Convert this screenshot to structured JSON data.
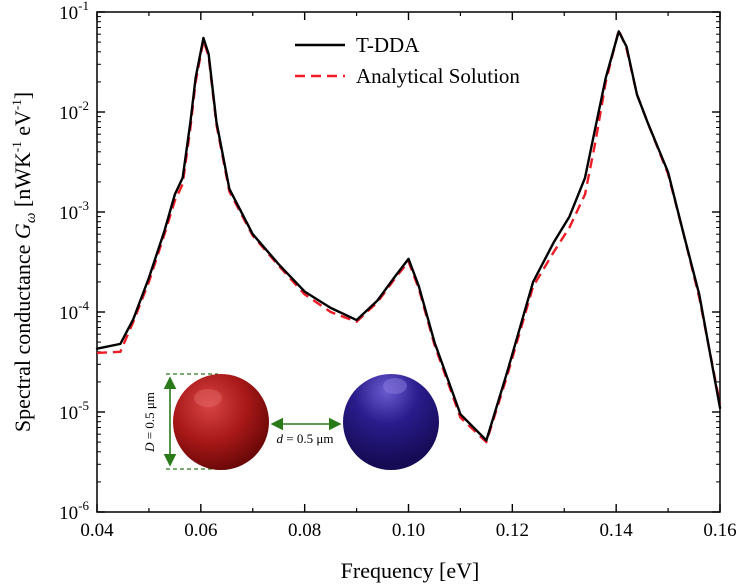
{
  "chart_data": {
    "type": "line",
    "xlabel": "Frequency [eV]",
    "ylabel": {
      "prefix": "Spectral conductance ",
      "symbol": "G",
      "subscript": "ω",
      "units_open": "  [nWK",
      "units_sup1": "-1",
      "units_mid": " eV",
      "units_sup2": "-1",
      "units_close": "]"
    },
    "xlim": [
      0.04,
      0.16
    ],
    "ylim": [
      1e-06,
      0.1
    ],
    "yscale": "log",
    "x_ticks": [
      {
        "value": 0.04,
        "label": "0.04"
      },
      {
        "value": 0.06,
        "label": "0.06"
      },
      {
        "value": 0.08,
        "label": "0.08"
      },
      {
        "value": 0.1,
        "label": "0.10"
      },
      {
        "value": 0.12,
        "label": "0.12"
      },
      {
        "value": 0.14,
        "label": "0.14"
      },
      {
        "value": 0.16,
        "label": "0.16"
      }
    ],
    "y_ticks": [
      {
        "value": 1e-06,
        "base": "10",
        "exp": "-6"
      },
      {
        "value": 1e-05,
        "base": "10",
        "exp": "-5"
      },
      {
        "value": 0.0001,
        "base": "10",
        "exp": "-4"
      },
      {
        "value": 0.001,
        "base": "10",
        "exp": "-3"
      },
      {
        "value": 0.01,
        "base": "10",
        "exp": "-2"
      },
      {
        "value": 0.1,
        "base": "10",
        "exp": "-1"
      }
    ],
    "legend_position": "top-right",
    "series": [
      {
        "name": "T-DDA",
        "color": "#000000",
        "style": "solid",
        "points": [
          [
            0.04,
            4.3e-05
          ],
          [
            0.0445,
            4.8e-05
          ],
          [
            0.047,
            8.5e-05
          ],
          [
            0.05,
            0.00022
          ],
          [
            0.053,
            0.00065
          ],
          [
            0.055,
            0.0015
          ],
          [
            0.0565,
            0.0022
          ],
          [
            0.058,
            0.008
          ],
          [
            0.059,
            0.022
          ],
          [
            0.0605,
            0.055
          ],
          [
            0.0615,
            0.038
          ],
          [
            0.063,
            0.008
          ],
          [
            0.0655,
            0.0017
          ],
          [
            0.07,
            0.0006
          ],
          [
            0.075,
            0.0003
          ],
          [
            0.08,
            0.00016
          ],
          [
            0.085,
            0.00011
          ],
          [
            0.09,
            8.3e-05
          ],
          [
            0.094,
            0.00013
          ],
          [
            0.0975,
            0.00023
          ],
          [
            0.1,
            0.00034
          ],
          [
            0.102,
            0.00018
          ],
          [
            0.105,
            5e-05
          ],
          [
            0.11,
            9.5e-06
          ],
          [
            0.115,
            5.2e-06
          ],
          [
            0.119,
            2.5e-05
          ],
          [
            0.124,
            0.0002
          ],
          [
            0.128,
            0.0005
          ],
          [
            0.131,
            0.0009
          ],
          [
            0.134,
            0.0022
          ],
          [
            0.136,
            0.007
          ],
          [
            0.138,
            0.022
          ],
          [
            0.1405,
            0.064
          ],
          [
            0.142,
            0.045
          ],
          [
            0.144,
            0.015
          ],
          [
            0.146,
            0.008
          ],
          [
            0.15,
            0.0025
          ],
          [
            0.153,
            0.0006
          ],
          [
            0.156,
            0.00015
          ],
          [
            0.16,
            1.1e-05
          ]
        ]
      },
      {
        "name": "Analytical Solution",
        "color": "#ee1c25",
        "style": "dashed",
        "points": [
          [
            0.04,
            3.9e-05
          ],
          [
            0.0445,
            4e-05
          ],
          [
            0.047,
            8e-05
          ],
          [
            0.05,
            0.0002
          ],
          [
            0.053,
            0.0006
          ],
          [
            0.055,
            0.0013
          ],
          [
            0.0565,
            0.0019
          ],
          [
            0.058,
            0.007
          ],
          [
            0.059,
            0.02
          ],
          [
            0.0605,
            0.052
          ],
          [
            0.0615,
            0.036
          ],
          [
            0.063,
            0.0075
          ],
          [
            0.0655,
            0.0016
          ],
          [
            0.07,
            0.00058
          ],
          [
            0.075,
            0.00029
          ],
          [
            0.08,
            0.00015
          ],
          [
            0.085,
            0.0001
          ],
          [
            0.09,
            8e-05
          ],
          [
            0.094,
            0.000125
          ],
          [
            0.0975,
            0.00022
          ],
          [
            0.1,
            0.00032
          ],
          [
            0.102,
            0.00017
          ],
          [
            0.105,
            4.7e-05
          ],
          [
            0.11,
            8.8e-06
          ],
          [
            0.115,
            5e-06
          ],
          [
            0.119,
            2.3e-05
          ],
          [
            0.124,
            0.00018
          ],
          [
            0.128,
            0.0004
          ],
          [
            0.131,
            0.0007
          ],
          [
            0.134,
            0.0015
          ],
          [
            0.136,
            0.005
          ],
          [
            0.138,
            0.02
          ],
          [
            0.1405,
            0.066
          ],
          [
            0.142,
            0.043
          ],
          [
            0.144,
            0.015
          ],
          [
            0.146,
            0.008
          ],
          [
            0.15,
            0.0024
          ],
          [
            0.153,
            0.0006
          ],
          [
            0.156,
            0.00014
          ],
          [
            0.16,
            1.2e-05
          ]
        ]
      }
    ],
    "inset": {
      "left_sphere_color": "#a81818",
      "right_sphere_color": "#2a1c8c",
      "arrow_color": "#2a7a1a",
      "D_symbol": "D",
      "D_value": " = 0.5 μm",
      "d_symbol": "d",
      "d_value": " = 0.5 μm"
    }
  }
}
